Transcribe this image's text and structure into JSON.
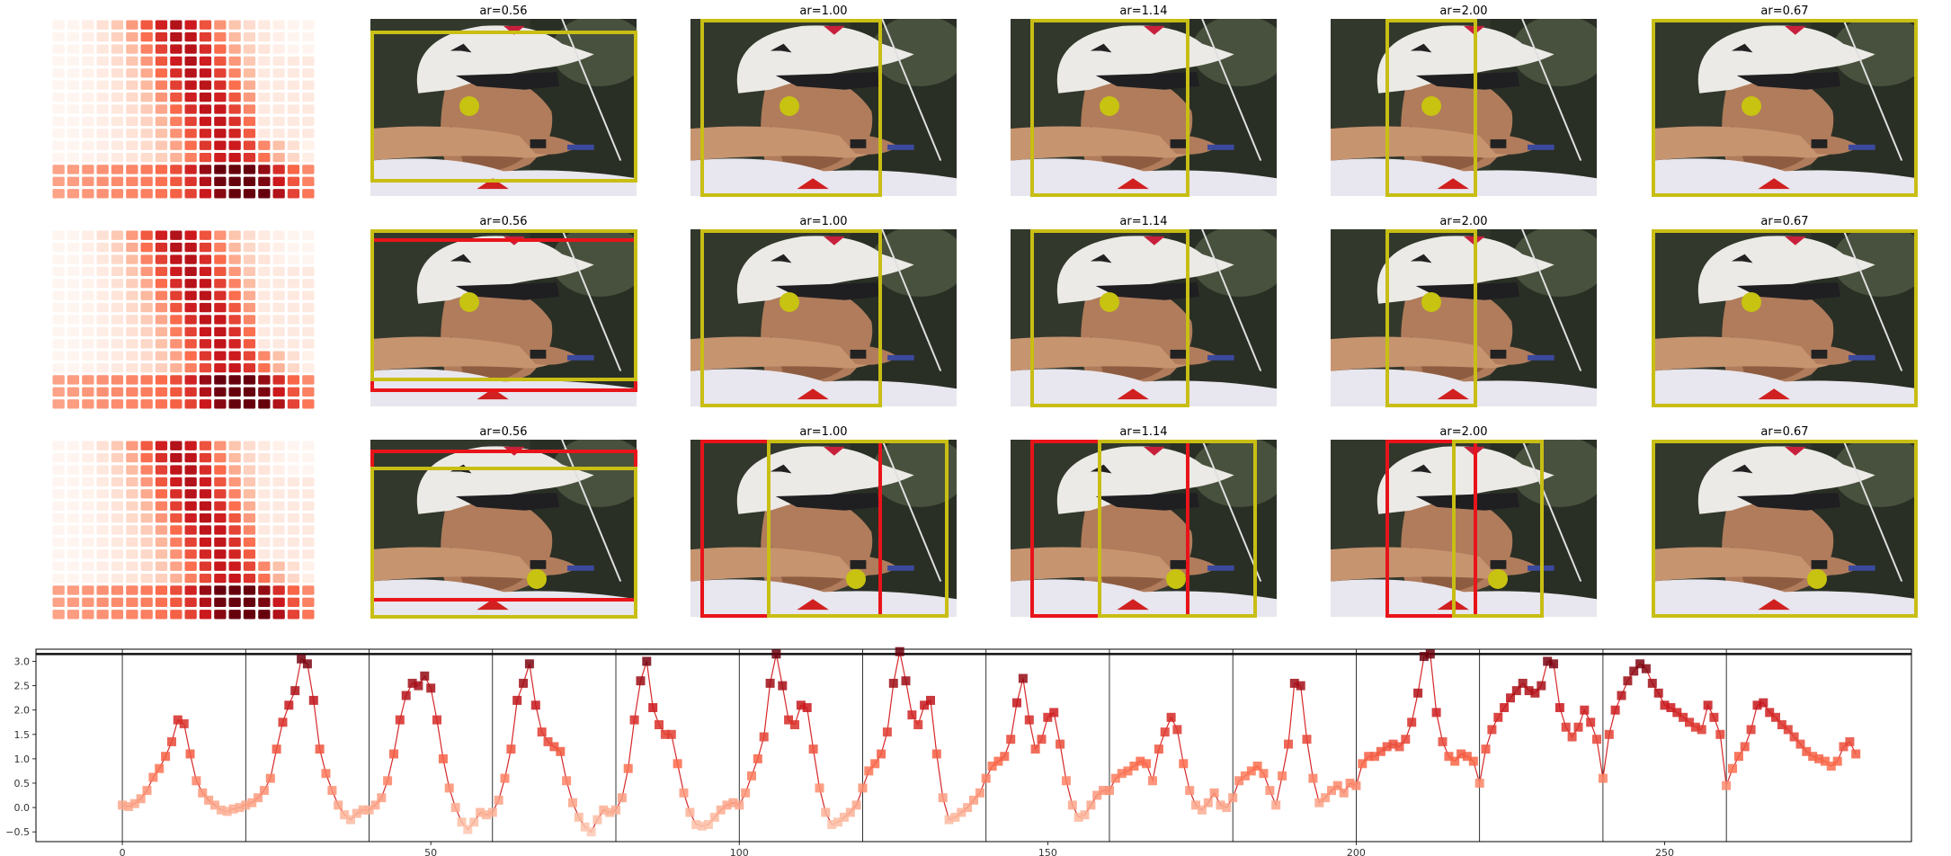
{
  "chart_data": [
    {
      "type": "heatmap",
      "panel": "grid-thumbnail",
      "cmap": "Reds",
      "rows": 3,
      "note_values": "15x18 cell grid of intensity shading"
    },
    {
      "type": "image-grid",
      "row_panels": [
        {
          "titles": [
            "ar=0.56",
            "ar=1.00",
            "ar=1.14",
            "ar=2.00",
            "ar=0.67"
          ]
        },
        {
          "titles": [
            "ar=0.56",
            "ar=1.00",
            "ar=1.14",
            "ar=2.00",
            "ar=0.67"
          ]
        },
        {
          "titles": [
            "ar=0.56",
            "ar=1.00",
            "ar=1.14",
            "ar=2.00",
            "ar=0.67"
          ]
        }
      ],
      "colors": {
        "yellow_box": "#c8be14",
        "red_box": "#e8141a",
        "yellow_dot": "#c7c310"
      }
    },
    {
      "type": "line",
      "xlim": [
        -14,
        290
      ],
      "ylim": [
        -0.7,
        3.25
      ],
      "hline": 3.15,
      "xticks": [
        0,
        50,
        100,
        150,
        200,
        250
      ],
      "xtick_labels": [
        "0",
        "50",
        "100",
        "150",
        "200",
        "250"
      ],
      "yticks": [
        -0.5,
        0.0,
        0.5,
        1.0,
        1.5,
        2.0,
        2.5,
        3.0
      ],
      "ytick_labels": [
        "−0.5",
        "0.0",
        "0.5",
        "1.0",
        "1.5",
        "2.0",
        "2.5",
        "3.0"
      ],
      "vlines": [
        0,
        20,
        40,
        60,
        80,
        100,
        120,
        140,
        160,
        180,
        200,
        220,
        240,
        260
      ],
      "line_color": "#d62728",
      "marker_cmap": "Reds",
      "series": [
        {
          "x": [
            0,
            1,
            2,
            3,
            4,
            5,
            6,
            7,
            8,
            9,
            10,
            11,
            12,
            13,
            14,
            15,
            16,
            17,
            18,
            19
          ],
          "y": [
            0.05,
            0.02,
            0.08,
            0.18,
            0.35,
            0.62,
            0.8,
            1.05,
            1.35,
            1.8,
            1.72,
            1.1,
            0.55,
            0.3,
            0.15,
            0.05,
            -0.05,
            -0.08,
            -0.03,
            0.0
          ]
        },
        {
          "x": [
            20,
            21,
            22,
            23,
            24,
            25,
            26,
            27,
            28,
            29,
            30,
            31,
            32,
            33,
            34,
            35,
            36,
            37,
            38,
            39
          ],
          "y": [
            0.05,
            0.1,
            0.2,
            0.35,
            0.6,
            1.2,
            1.75,
            2.1,
            2.4,
            3.05,
            2.95,
            2.2,
            1.2,
            0.7,
            0.35,
            0.05,
            -0.15,
            -0.25,
            -0.12,
            -0.05
          ]
        },
        {
          "x": [
            40,
            41,
            42,
            43,
            44,
            45,
            46,
            47,
            48,
            49,
            50,
            51,
            52,
            53,
            54,
            55,
            56,
            57,
            58,
            59
          ],
          "y": [
            -0.05,
            0.05,
            0.2,
            0.55,
            1.1,
            1.8,
            2.3,
            2.55,
            2.5,
            2.7,
            2.45,
            1.8,
            1.0,
            0.4,
            0.0,
            -0.3,
            -0.45,
            -0.3,
            -0.1,
            -0.15
          ]
        },
        {
          "x": [
            60,
            61,
            62,
            63,
            64,
            65,
            66,
            67,
            68,
            69,
            70,
            71,
            72,
            73,
            74,
            75,
            76,
            77,
            78,
            79
          ],
          "y": [
            -0.1,
            0.15,
            0.6,
            1.2,
            2.2,
            2.55,
            2.95,
            2.1,
            1.55,
            1.35,
            1.25,
            1.15,
            0.55,
            0.1,
            -0.2,
            -0.4,
            -0.5,
            -0.25,
            -0.05,
            -0.1
          ]
        },
        {
          "x": [
            80,
            81,
            82,
            83,
            84,
            85,
            86,
            87,
            88,
            89,
            90,
            91,
            92,
            93,
            94,
            95,
            96,
            97,
            98,
            99
          ],
          "y": [
            -0.05,
            0.2,
            0.8,
            1.8,
            2.6,
            3.0,
            2.05,
            1.7,
            1.5,
            1.5,
            0.9,
            0.3,
            -0.1,
            -0.35,
            -0.38,
            -0.35,
            -0.2,
            -0.05,
            0.05,
            0.1
          ]
        },
        {
          "x": [
            100,
            101,
            102,
            103,
            104,
            105,
            106,
            107,
            108,
            109,
            110,
            111,
            112,
            113,
            114,
            115,
            116,
            117,
            118,
            119
          ],
          "y": [
            0.05,
            0.3,
            0.65,
            1.0,
            1.45,
            2.55,
            3.15,
            2.5,
            1.8,
            1.7,
            2.1,
            2.05,
            1.2,
            0.4,
            -0.1,
            -0.35,
            -0.3,
            -0.2,
            -0.1,
            0.05
          ]
        },
        {
          "x": [
            120,
            121,
            122,
            123,
            124,
            125,
            126,
            127,
            128,
            129,
            130,
            131,
            132,
            133,
            134,
            135,
            136,
            137,
            138,
            139
          ],
          "y": [
            0.4,
            0.75,
            0.9,
            1.1,
            1.55,
            2.55,
            3.2,
            2.6,
            1.9,
            1.7,
            2.1,
            2.2,
            1.1,
            0.2,
            -0.25,
            -0.2,
            -0.1,
            0.0,
            0.15,
            0.3
          ]
        },
        {
          "x": [
            140,
            141,
            142,
            143,
            144,
            145,
            146,
            147,
            148,
            149,
            150,
            151,
            152,
            153,
            154,
            155,
            156,
            157,
            158,
            159
          ],
          "y": [
            0.6,
            0.85,
            0.95,
            1.05,
            1.4,
            2.15,
            2.65,
            1.8,
            1.2,
            1.4,
            1.85,
            1.95,
            1.3,
            0.55,
            0.05,
            -0.2,
            -0.15,
            0.05,
            0.25,
            0.35
          ]
        },
        {
          "x": [
            160,
            161,
            162,
            163,
            164,
            165,
            166,
            167,
            168,
            169,
            170,
            171,
            172,
            173,
            174,
            175,
            176,
            177,
            178,
            179
          ],
          "y": [
            0.35,
            0.6,
            0.7,
            0.75,
            0.85,
            0.95,
            0.9,
            0.55,
            1.2,
            1.55,
            1.85,
            1.6,
            0.9,
            0.35,
            0.05,
            -0.05,
            0.1,
            0.3,
            0.05,
            0.0
          ]
        },
        {
          "x": [
            180,
            181,
            182,
            183,
            184,
            185,
            186,
            187,
            188,
            189,
            190,
            191,
            192,
            193,
            194,
            195,
            196,
            197,
            198,
            199
          ],
          "y": [
            0.2,
            0.55,
            0.65,
            0.75,
            0.85,
            0.7,
            0.35,
            0.05,
            0.65,
            1.3,
            2.55,
            2.5,
            1.4,
            0.6,
            0.1,
            0.2,
            0.35,
            0.45,
            0.3,
            0.5
          ]
        },
        {
          "x": [
            200,
            201,
            202,
            203,
            204,
            205,
            206,
            207,
            208,
            209,
            210,
            211,
            212,
            213,
            214,
            215,
            216,
            217,
            218,
            219
          ],
          "y": [
            0.45,
            0.9,
            1.05,
            1.05,
            1.15,
            1.25,
            1.3,
            1.25,
            1.4,
            1.75,
            2.35,
            3.1,
            3.15,
            1.95,
            1.35,
            1.05,
            0.95,
            1.1,
            1.05,
            0.95
          ]
        },
        {
          "x": [
            220,
            221,
            222,
            223,
            224,
            225,
            226,
            227,
            228,
            229,
            230,
            231,
            232,
            233,
            234,
            235,
            236,
            237,
            238,
            239
          ],
          "y": [
            0.5,
            1.2,
            1.6,
            1.85,
            2.05,
            2.25,
            2.4,
            2.55,
            2.4,
            2.35,
            2.5,
            3.0,
            2.95,
            2.05,
            1.65,
            1.45,
            1.65,
            2.0,
            1.75,
            1.4
          ]
        },
        {
          "x": [
            240,
            241,
            242,
            243,
            244,
            245,
            246,
            247,
            248,
            249,
            250,
            251,
            252,
            253,
            254,
            255,
            256,
            257,
            258,
            259
          ],
          "y": [
            0.6,
            1.5,
            2.0,
            2.3,
            2.6,
            2.8,
            2.95,
            2.85,
            2.55,
            2.35,
            2.1,
            2.05,
            1.95,
            1.85,
            1.75,
            1.65,
            1.6,
            2.1,
            1.85,
            1.5
          ]
        },
        {
          "x": [
            260,
            261,
            262,
            263,
            264,
            265,
            266,
            267,
            268,
            269,
            270,
            271,
            272,
            273,
            274,
            275,
            276,
            277,
            278,
            279,
            280,
            281
          ],
          "y": [
            0.45,
            0.8,
            1.05,
            1.25,
            1.6,
            2.1,
            2.15,
            1.95,
            1.85,
            1.7,
            1.6,
            1.45,
            1.3,
            1.15,
            1.05,
            1.0,
            0.95,
            0.85,
            0.95,
            1.25,
            1.35,
            1.1
          ]
        }
      ]
    }
  ]
}
